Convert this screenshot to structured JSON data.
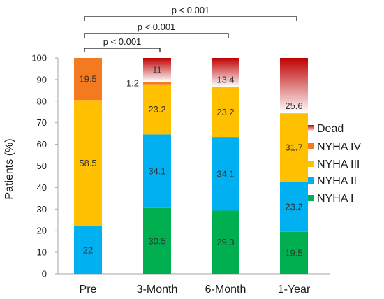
{
  "chart_data": {
    "type": "bar",
    "stacked": true,
    "categories": [
      "Pre",
      "3-Month",
      "6-Month",
      "1-Year"
    ],
    "ylabel": "Patients (%)",
    "xlabel": "",
    "ylim": [
      0,
      100
    ],
    "yticks": [
      0,
      10,
      20,
      30,
      40,
      50,
      60,
      70,
      80,
      90,
      100
    ],
    "grid": false,
    "legend_position": "right",
    "series": [
      {
        "name": "NYHA I",
        "color": "#00b050",
        "values": [
          0,
          30.5,
          29.3,
          19.5
        ],
        "labels": [
          "",
          "30.5",
          "29.3",
          "19.5"
        ]
      },
      {
        "name": "NYHA II",
        "color": "#00b0f0",
        "values": [
          22,
          34.1,
          34.1,
          23.2
        ],
        "labels": [
          "22",
          "34.1",
          "34.1",
          "23.2"
        ]
      },
      {
        "name": "NYHA III",
        "color": "#ffc000",
        "values": [
          58.5,
          23.2,
          23.2,
          31.7
        ],
        "labels": [
          "58.5",
          "23.2",
          "23.2",
          "31.7"
        ]
      },
      {
        "name": "NYHA IV",
        "color": "#f47a20",
        "values": [
          19.5,
          1.2,
          0,
          0
        ],
        "labels": [
          "19.5",
          "1.2",
          "",
          ""
        ]
      },
      {
        "name": "Dead",
        "color": "#c00000",
        "gradient": true,
        "values": [
          0,
          11,
          13.4,
          25.6
        ],
        "labels": [
          "",
          "11",
          "13.4",
          "25.6"
        ]
      }
    ],
    "legend_order": [
      "Dead",
      "NYHA IV",
      "NYHA III",
      "NYHA II",
      "NYHA I"
    ],
    "significance": [
      {
        "from": "Pre",
        "to": "3-Month",
        "label": "p < 0.001"
      },
      {
        "from": "Pre",
        "to": "6-Month",
        "label": "p < 0.001"
      },
      {
        "from": "Pre",
        "to": "1-Year",
        "label": "p < 0.001"
      }
    ]
  }
}
